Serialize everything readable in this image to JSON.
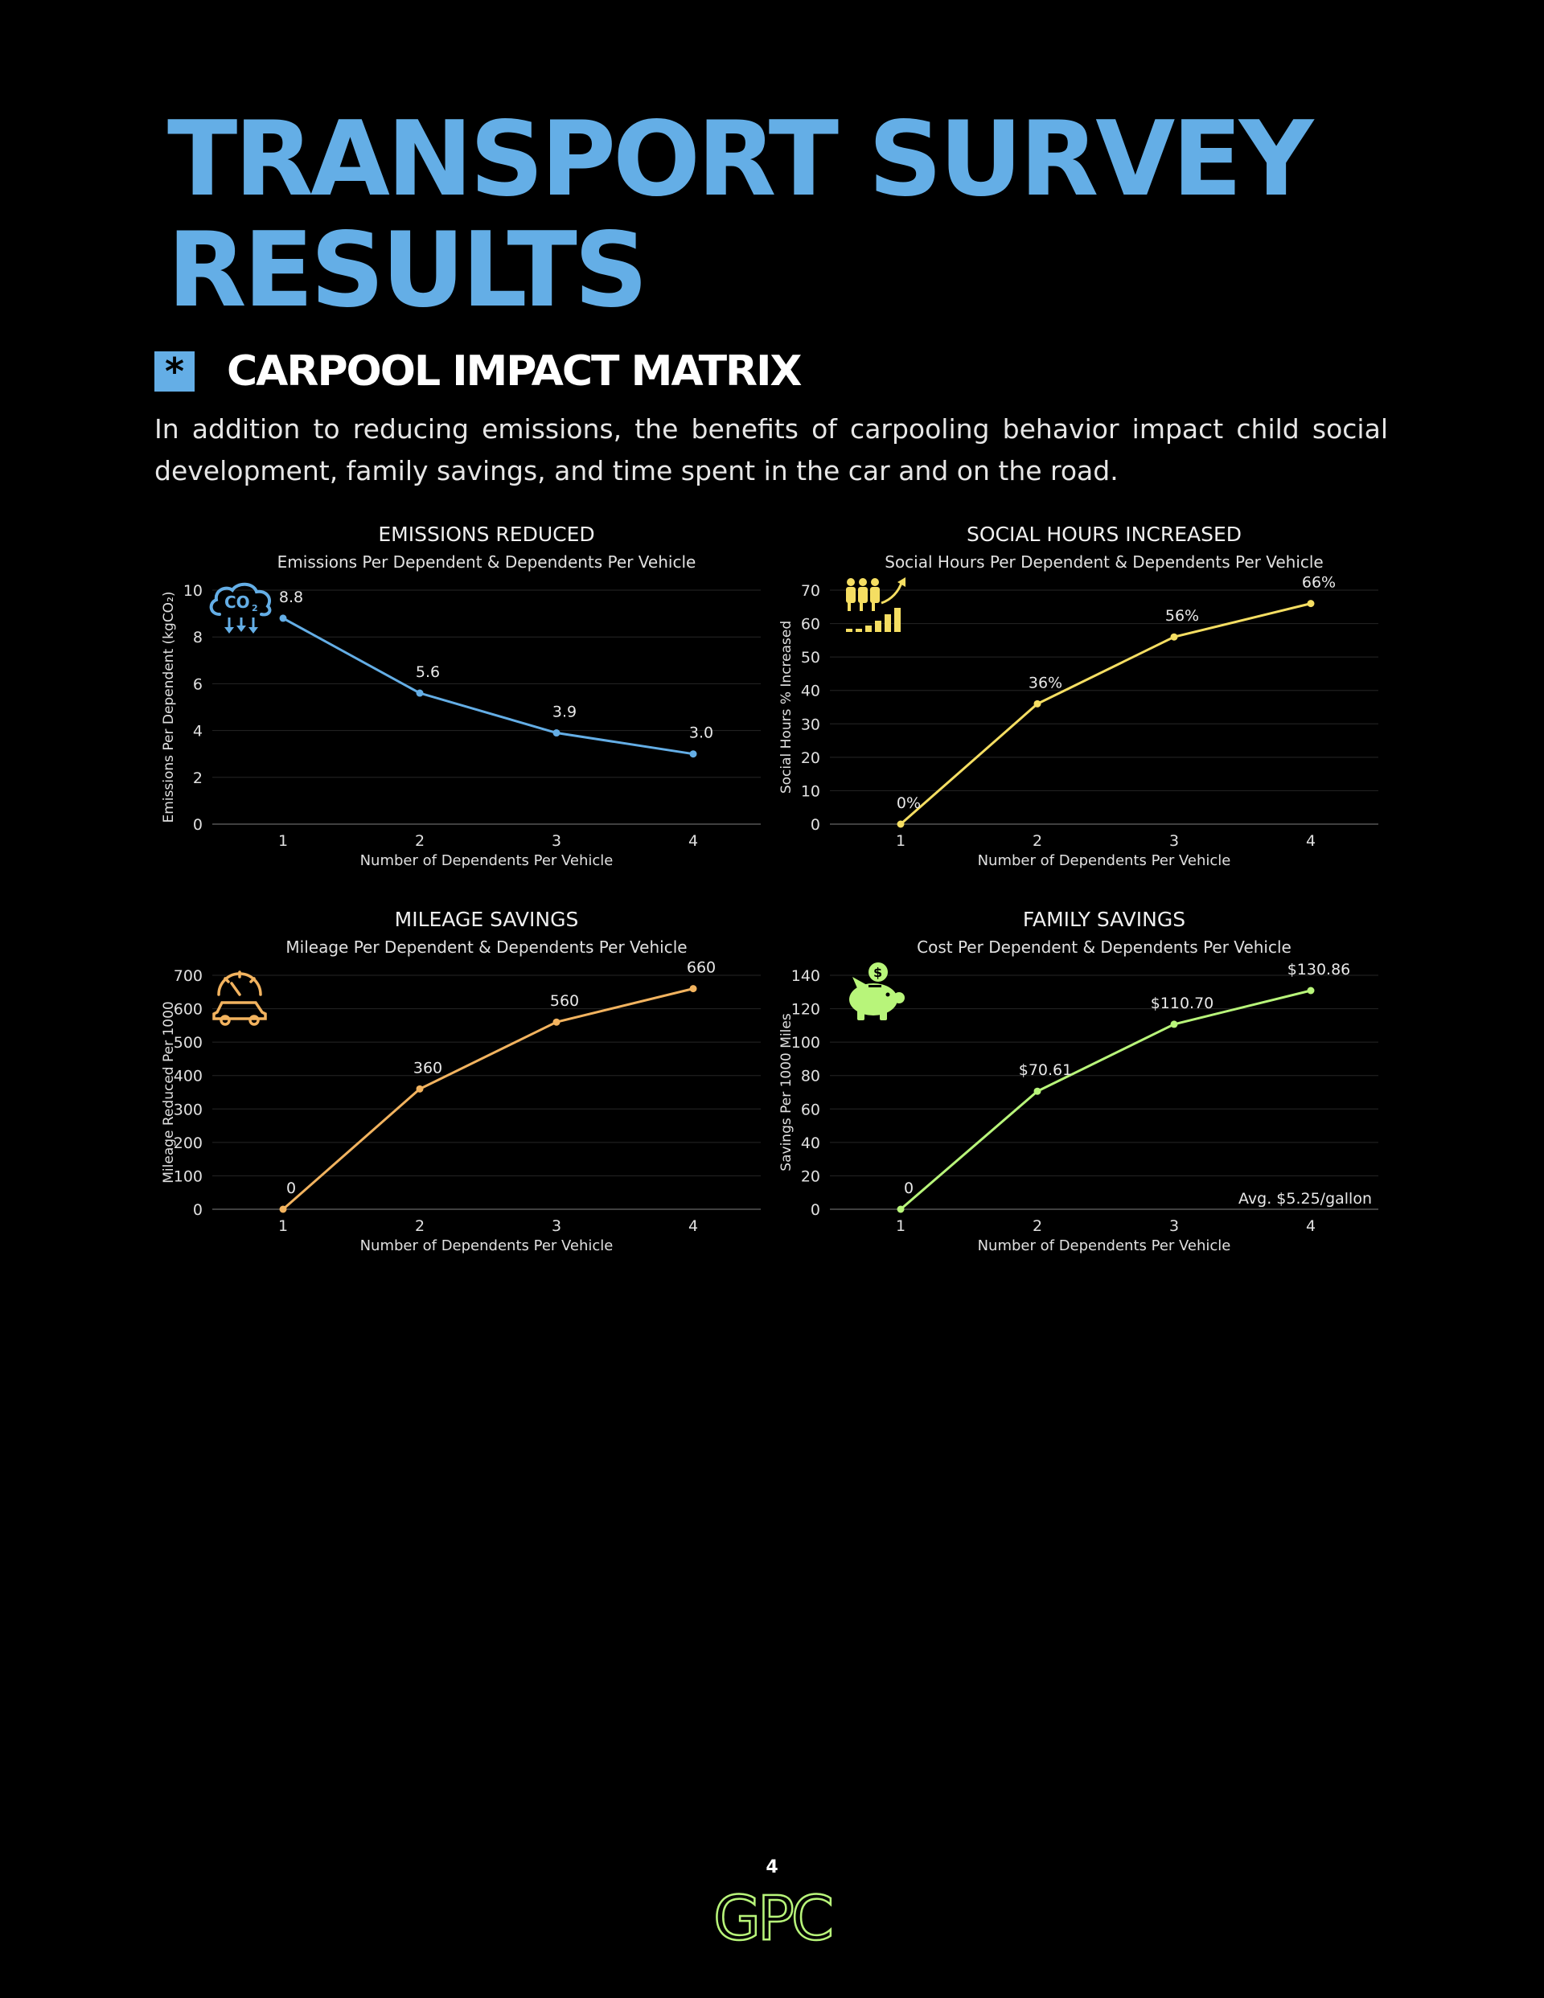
{
  "page": {
    "title": "TRANSPORT SURVEY RESULTS",
    "section_title": "CARPOOL IMPACT MATRIX",
    "section_icon": "asterisk-icon",
    "intro": "In addition to reducing emissions, the benefits of carpooling behavior impact child social development, family savings, and time spent in the car and on the road.",
    "page_number": "4",
    "logo_text": "GPC"
  },
  "chart_data": [
    {
      "id": "emissions",
      "type": "line",
      "title": "EMISSIONS REDUCED",
      "subtitle": "Emissions Per Dependent & Dependents Per Vehicle",
      "xlabel": "Number of Dependents Per Vehicle",
      "ylabel": "Emissions Per Dependent (kgCO₂)",
      "x": [
        1,
        2,
        3,
        4
      ],
      "values": [
        8.8,
        5.6,
        3.9,
        3.0
      ],
      "data_labels": [
        "8.8",
        "5.6",
        "3.9",
        "3.0"
      ],
      "ylim": [
        0,
        10
      ],
      "yticks": [
        0,
        2,
        4,
        6,
        8,
        10
      ],
      "color": "#64aee6",
      "icon": "co2-cloud-icon",
      "grid": true
    },
    {
      "id": "social",
      "type": "line",
      "title": "SOCIAL HOURS INCREASED",
      "subtitle": "Social Hours Per Dependent & Dependents Per Vehicle",
      "xlabel": "Number of Dependents Per Vehicle",
      "ylabel": "Social Hours % Increased",
      "x": [
        1,
        2,
        3,
        4
      ],
      "values": [
        0,
        36,
        56,
        66
      ],
      "data_labels": [
        "0%",
        "36%",
        "56%",
        "66%"
      ],
      "ylim": [
        0,
        70
      ],
      "yticks": [
        0,
        10,
        20,
        30,
        40,
        50,
        60,
        70
      ],
      "color": "#f5de62",
      "icon": "people-growth-icon",
      "grid": true
    },
    {
      "id": "mileage",
      "type": "line",
      "title": "MILEAGE SAVINGS",
      "subtitle": "Mileage Per Dependent & Dependents Per Vehicle",
      "xlabel": "Number of Dependents Per Vehicle",
      "ylabel": "Mileage Reduced Per 1000",
      "x": [
        1,
        2,
        3,
        4
      ],
      "values": [
        0,
        360,
        560,
        660
      ],
      "data_labels": [
        "0",
        "360",
        "560",
        "660"
      ],
      "ylim": [
        0,
        700
      ],
      "yticks": [
        0,
        100,
        200,
        300,
        400,
        500,
        600,
        700
      ],
      "color": "#f2b35f",
      "icon": "car-speedometer-icon",
      "grid": true
    },
    {
      "id": "family",
      "type": "line",
      "title": "FAMILY SAVINGS",
      "subtitle": "Cost Per Dependent & Dependents Per Vehicle",
      "xlabel": "Number of Dependents Per Vehicle",
      "ylabel": "Savings Per 1000 Miles",
      "x": [
        1,
        2,
        3,
        4
      ],
      "values": [
        0,
        70.61,
        110.7,
        130.86
      ],
      "data_labels": [
        "0",
        "$70.61",
        "$110.70",
        "$130.86"
      ],
      "ylim": [
        0,
        140
      ],
      "yticks": [
        0,
        20,
        40,
        60,
        80,
        100,
        120,
        140
      ],
      "annotation": "Avg. $5.25/gallon",
      "color": "#b8f57a",
      "icon": "piggy-bank-icon",
      "grid": true
    }
  ]
}
